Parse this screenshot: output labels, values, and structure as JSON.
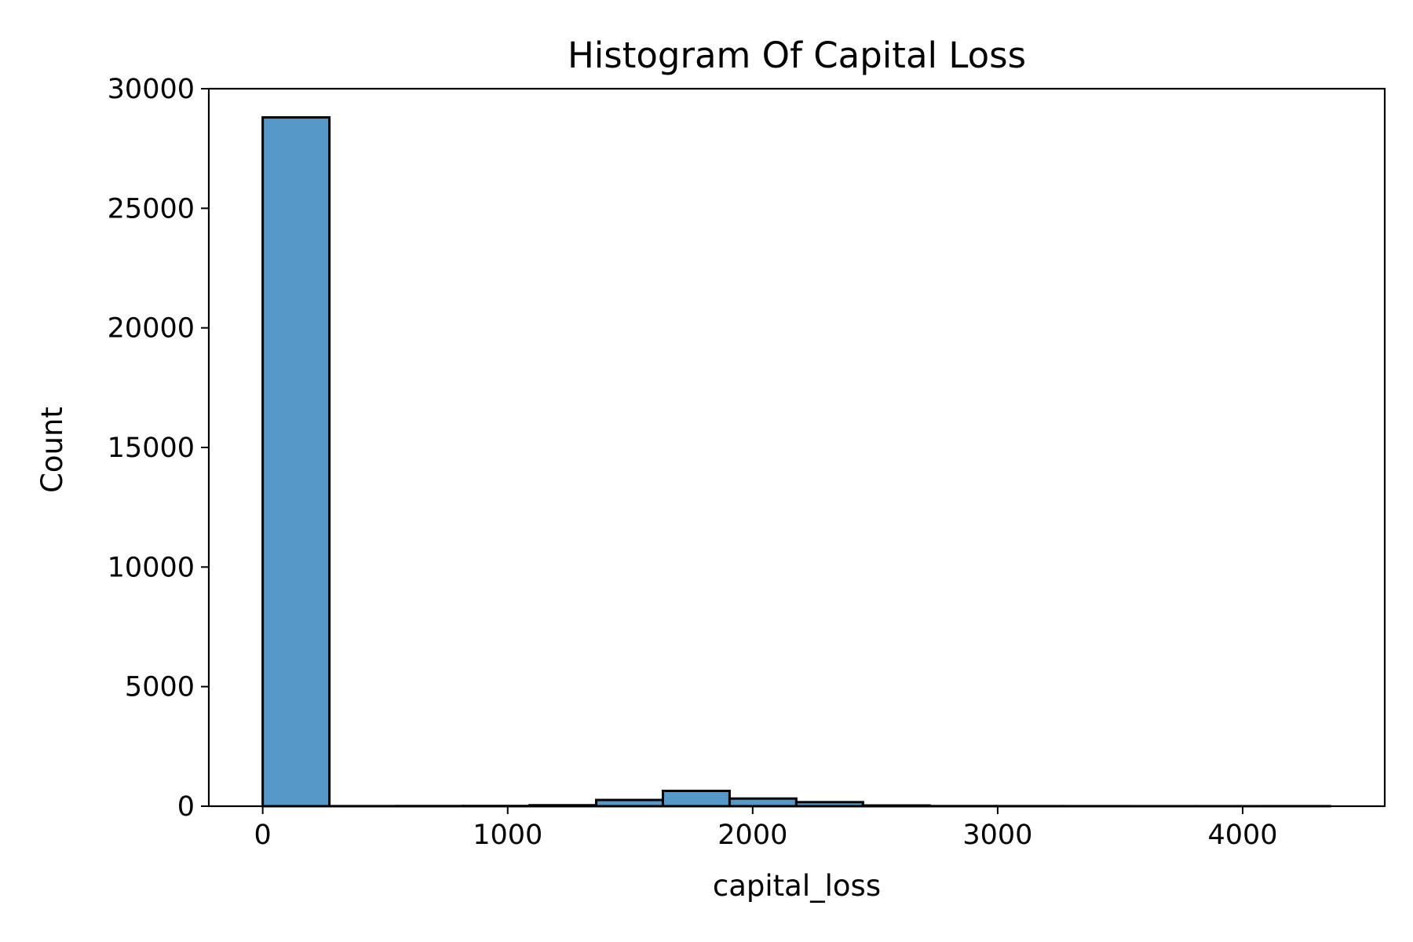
{
  "chart_data": {
    "type": "bar",
    "title": "Histogram Of Capital Loss",
    "xlabel": "capital_loss",
    "ylabel": "Count",
    "xlim": [
      -220,
      4580
    ],
    "ylim": [
      0,
      30000
    ],
    "xticks": [
      0,
      1000,
      2000,
      3000,
      4000
    ],
    "yticks": [
      0,
      5000,
      10000,
      15000,
      20000,
      25000,
      30000
    ],
    "grid": false,
    "bin_edges": [
      0,
      272.25,
      544.5,
      816.75,
      1089,
      1361.25,
      1633.5,
      1905.75,
      2178,
      2450.25,
      2722.5,
      2994.75,
      3267,
      3539.25,
      3811.5,
      4083.75,
      4356
    ],
    "counts": [
      28800,
      3,
      6,
      10,
      40,
      260,
      640,
      320,
      170,
      30,
      5,
      3,
      2,
      1,
      1,
      2
    ],
    "colors": {
      "bar_fill": "#5499c7",
      "bar_edge": "#000000",
      "axis": "#000000"
    }
  }
}
